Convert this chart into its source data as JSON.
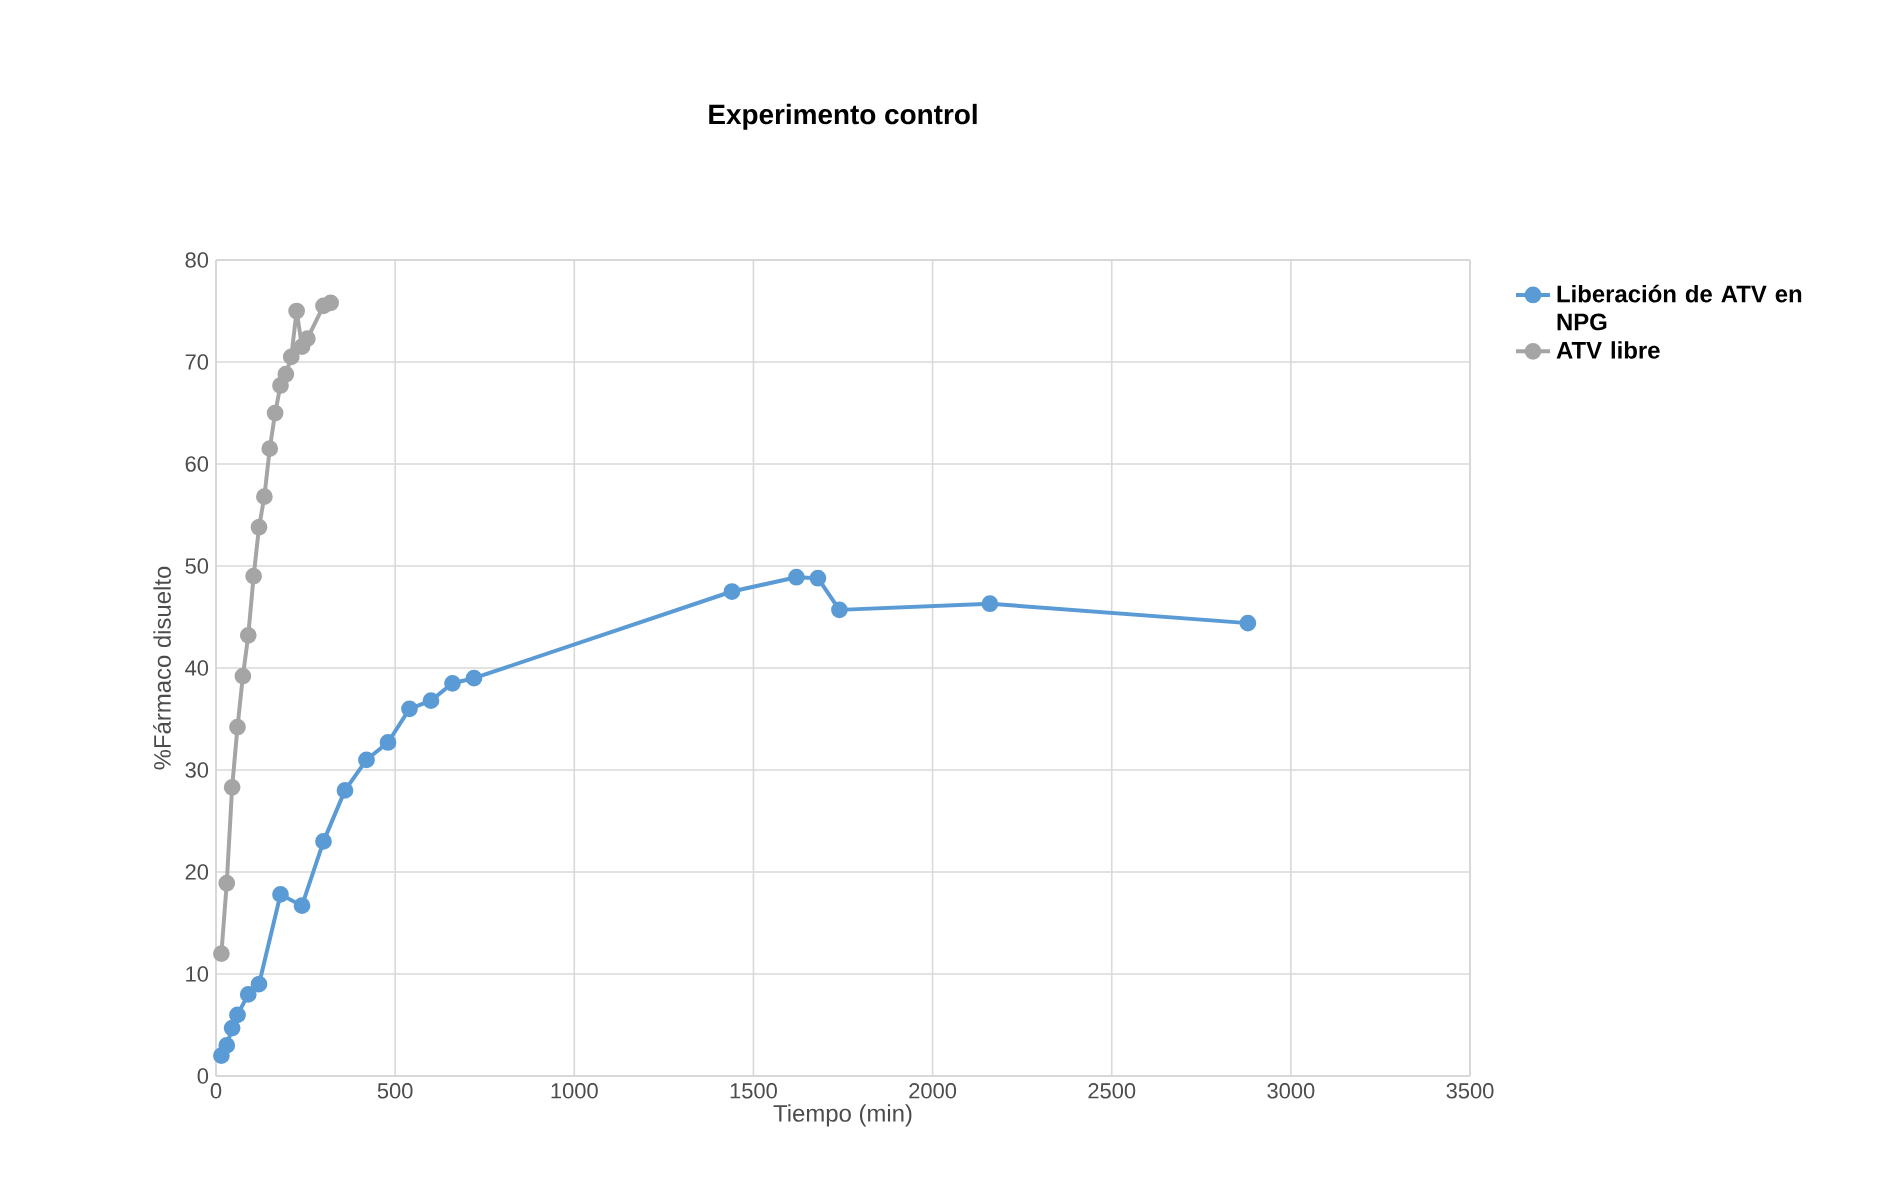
{
  "chart_data": {
    "type": "line",
    "title": "Experimento control",
    "xlabel": "Tiempo (min)",
    "ylabel": "%Fármaco disuelto",
    "xlim": [
      0,
      3500
    ],
    "xticks": [
      0,
      500,
      1000,
      1500,
      2000,
      2500,
      3000,
      3500
    ],
    "ylim": [
      0,
      80
    ],
    "yticks": [
      0,
      10,
      20,
      30,
      40,
      50,
      60,
      70,
      80
    ],
    "grid": true,
    "legend": "right",
    "marker": "circle",
    "line_style": "solid",
    "series": [
      {
        "name": "Liberación de ATV en NPG",
        "color": "#5b9bd5",
        "x": [
          15,
          30,
          45,
          60,
          90,
          120,
          180,
          240,
          300,
          360,
          420,
          480,
          540,
          600,
          660,
          720,
          1440,
          1620,
          1680,
          1740,
          2160,
          2880
        ],
        "values": [
          2,
          3,
          4.7,
          6,
          8,
          9,
          17.8,
          16.7,
          23,
          28,
          31,
          32.7,
          36,
          36.8,
          38.5,
          39,
          47.5,
          48.9,
          48.8,
          45.7,
          46.3,
          44.4
        ]
      },
      {
        "name": "ATV libre",
        "color": "#a5a5a5",
        "x": [
          15,
          30,
          45,
          60,
          75,
          90,
          105,
          120,
          135,
          150,
          165,
          180,
          195,
          210,
          225,
          240,
          255,
          300,
          320
        ],
        "values": [
          12,
          18.9,
          28.3,
          34.2,
          39.2,
          43.2,
          49,
          53.8,
          56.8,
          61.5,
          65,
          67.7,
          68.8,
          70.5,
          75,
          71.5,
          72.3,
          75.5,
          75.8
        ]
      }
    ]
  }
}
